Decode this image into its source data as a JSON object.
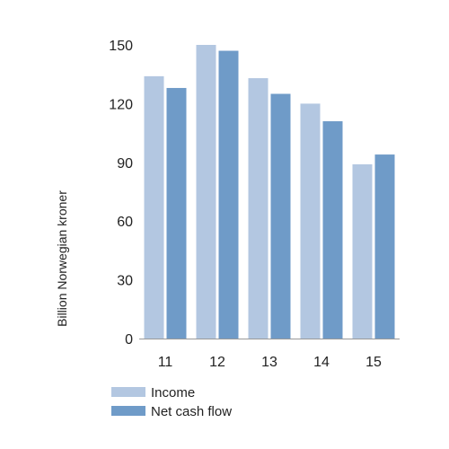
{
  "chart_data": {
    "type": "bar",
    "categories": [
      "11",
      "12",
      "13",
      "14",
      "15"
    ],
    "series": [
      {
        "name": "Income",
        "values": [
          134,
          150,
          133,
          120,
          89
        ],
        "color": "#b3c7e1"
      },
      {
        "name": "Net cash flow",
        "values": [
          128,
          147,
          125,
          111,
          94
        ],
        "color": "#6f9bc8"
      }
    ],
    "ylabel": "Billion Norwegian kroner",
    "ylim": [
      0,
      150
    ],
    "yticks": [
      "0",
      "30",
      "60",
      "90",
      "120",
      "150"
    ],
    "grid": false,
    "legend_position": "bottom-left"
  }
}
